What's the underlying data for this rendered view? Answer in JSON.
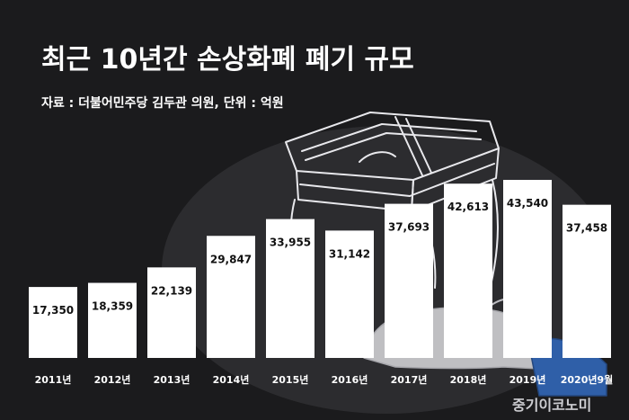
{
  "title": "최근 10년간 손상화폐 폐기 규모",
  "subtitle": "자료 : 더불어민주당 김두관 의원, 단위  : 억원",
  "watermark": "중기이코노미",
  "colors": {
    "background": "#1b1b1d",
    "bar": "#ffffff",
    "label_text": "#111111",
    "axis_text": "#ffffff"
  },
  "chart_data": {
    "type": "bar",
    "title": "최근 10년간 손상화폐 폐기 규모",
    "categories": [
      "2011년",
      "2012년",
      "2013년",
      "2014년",
      "2015년",
      "2016년",
      "2017년",
      "2018년",
      "2019년",
      "2020년9월"
    ],
    "value_labels": [
      "17,350",
      "18,359",
      "22,139",
      "29,847",
      "33,955",
      "31,142",
      "37,693",
      "42,613",
      "43,540",
      "37,458"
    ],
    "values": [
      17350,
      18359,
      22139,
      29847,
      33955,
      31142,
      37693,
      42613,
      43540,
      37458
    ],
    "ylabel": "억원",
    "xlabel": "",
    "ylim": [
      0,
      43540
    ],
    "grid": false,
    "legend": "none"
  }
}
